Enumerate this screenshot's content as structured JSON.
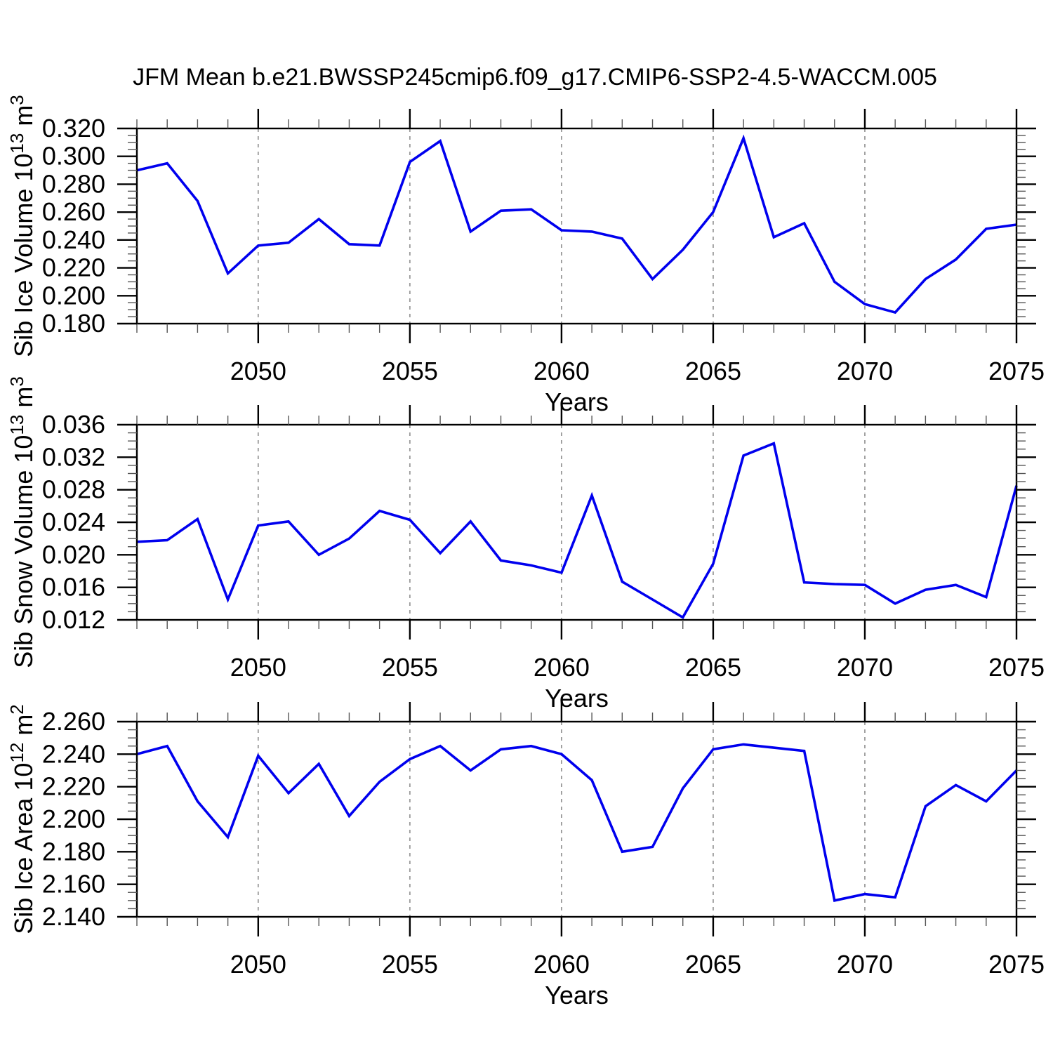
{
  "title": "JFM Mean b.e21.BWSSP245cmip6.f09_g17.CMIP6-SSP2-4.5-WACCM.005",
  "colors": {
    "line": "#0000ee",
    "grid": "#9a9a9a",
    "axis": "#000000",
    "minor_tick": "#555555",
    "background": "#ffffff"
  },
  "chart_data": [
    {
      "id": "sib-ice-volume",
      "type": "line",
      "ylabel": "Sib Ice Volume 10^13 m^3",
      "xlabel": "Years",
      "ylim": [
        0.18,
        0.32
      ],
      "ytick_step": 0.02,
      "yminor_step": 0.005,
      "ytick_decimals": 3,
      "xlim": [
        2046,
        2075
      ],
      "xticks": [
        2050,
        2055,
        2060,
        2065,
        2070,
        2075
      ],
      "grid_x": [
        2050,
        2055,
        2060,
        2065,
        2070
      ],
      "grid": "vertical-dashed",
      "legend": "none",
      "x": [
        2046,
        2047,
        2048,
        2049,
        2050,
        2051,
        2052,
        2053,
        2054,
        2055,
        2056,
        2057,
        2058,
        2059,
        2060,
        2061,
        2062,
        2063,
        2064,
        2065,
        2066,
        2067,
        2068,
        2069,
        2070,
        2071,
        2072,
        2073,
        2074,
        2075
      ],
      "values": [
        0.29,
        0.295,
        0.268,
        0.216,
        0.236,
        0.238,
        0.255,
        0.237,
        0.236,
        0.296,
        0.311,
        0.246,
        0.261,
        0.262,
        0.247,
        0.246,
        0.241,
        0.212,
        0.233,
        0.26,
        0.313,
        0.242,
        0.252,
        0.21,
        0.194,
        0.188,
        0.212,
        0.226,
        0.248,
        0.251
      ]
    },
    {
      "id": "sib-snow-volume",
      "type": "line",
      "ylabel": "Sib Snow Volume 10^13 m^3",
      "xlabel": "Years",
      "ylim": [
        0.012,
        0.036
      ],
      "ytick_step": 0.004,
      "yminor_step": 0.001,
      "ytick_decimals": 3,
      "xlim": [
        2046,
        2075
      ],
      "xticks": [
        2050,
        2055,
        2060,
        2065,
        2070,
        2075
      ],
      "grid_x": [
        2050,
        2055,
        2060,
        2065,
        2070
      ],
      "grid": "vertical-dashed",
      "legend": "none",
      "x": [
        2046,
        2047,
        2048,
        2049,
        2050,
        2051,
        2052,
        2053,
        2054,
        2055,
        2056,
        2057,
        2058,
        2059,
        2060,
        2061,
        2062,
        2063,
        2064,
        2065,
        2066,
        2067,
        2068,
        2069,
        2070,
        2071,
        2072,
        2073,
        2074,
        2075
      ],
      "values": [
        0.0216,
        0.0218,
        0.0244,
        0.0145,
        0.0236,
        0.0241,
        0.02,
        0.022,
        0.0254,
        0.0243,
        0.0202,
        0.0241,
        0.0193,
        0.0187,
        0.0178,
        0.0273,
        0.0167,
        0.0145,
        0.0123,
        0.0189,
        0.0322,
        0.0337,
        0.0166,
        0.0164,
        0.0163,
        0.014,
        0.0157,
        0.0163,
        0.0148,
        0.0285
      ]
    },
    {
      "id": "sib-ice-area",
      "type": "line",
      "ylabel": "Sib Ice Area 10^12 m^2",
      "xlabel": "Years",
      "ylim": [
        2.14,
        2.26
      ],
      "ytick_step": 0.02,
      "yminor_step": 0.005,
      "ytick_decimals": 3,
      "xlim": [
        2046,
        2075
      ],
      "xticks": [
        2050,
        2055,
        2060,
        2065,
        2070,
        2075
      ],
      "grid_x": [
        2050,
        2055,
        2060,
        2065,
        2070
      ],
      "grid": "vertical-dashed",
      "legend": "none",
      "x": [
        2046,
        2047,
        2048,
        2049,
        2050,
        2051,
        2052,
        2053,
        2054,
        2055,
        2056,
        2057,
        2058,
        2059,
        2060,
        2061,
        2062,
        2063,
        2064,
        2065,
        2066,
        2067,
        2068,
        2069,
        2070,
        2071,
        2072,
        2073,
        2074,
        2075
      ],
      "values": [
        2.24,
        2.245,
        2.211,
        2.189,
        2.239,
        2.216,
        2.234,
        2.202,
        2.223,
        2.237,
        2.245,
        2.23,
        2.243,
        2.245,
        2.24,
        2.224,
        2.18,
        2.183,
        2.219,
        2.243,
        2.246,
        2.244,
        2.242,
        2.15,
        2.154,
        2.152,
        2.208,
        2.221,
        2.211,
        2.23
      ]
    }
  ]
}
